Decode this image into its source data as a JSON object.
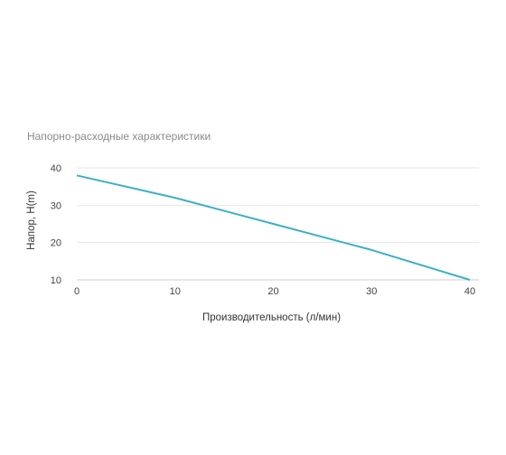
{
  "chart_data": {
    "type": "line",
    "title": "Напорно-расходные характеристики",
    "xlabel": "Производительность (л/мин)",
    "ylabel": "Напор, H(m)",
    "x": [
      0,
      10,
      20,
      30,
      40
    ],
    "xlim": [
      0,
      40
    ],
    "ylim": [
      10,
      40
    ],
    "xticks": [
      "0",
      "10",
      "20",
      "30",
      "40"
    ],
    "yticks": [
      "10",
      "20",
      "30",
      "40"
    ],
    "grid": true,
    "series": [
      {
        "values": [
          38,
          32,
          25,
          18,
          10
        ],
        "color": "#3ab0c8"
      }
    ]
  }
}
